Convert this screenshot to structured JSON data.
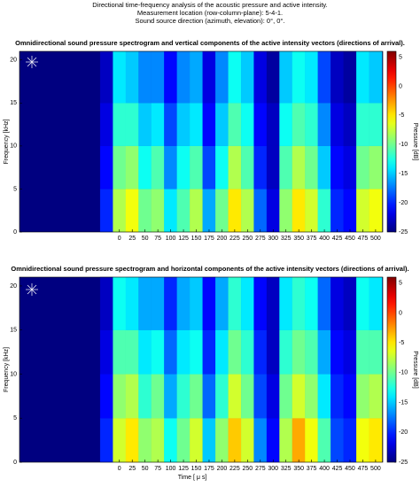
{
  "header": {
    "lines": [
      "Directional time-frequency analysis of the acoustic pressure and active intensity.",
      "Measurement location (row-column-plane): 5-4-1.",
      "Sound source direction (azimuth, elevation): 0°, 0°."
    ]
  },
  "chart_data": [
    {
      "type": "heatmap",
      "title": "Omnidirectional sound pressure spectrogram and vertical components of the active intensity vectors (directions of arrival).",
      "y_label": "Frequency [kHz]",
      "colorbar_label": "Pressure [dB]",
      "colormap": "jet",
      "xlim": [
        -195,
        514
      ],
      "ylim": [
        0,
        21
      ],
      "clim": [
        -25,
        6
      ],
      "xticks": [
        0,
        25,
        50,
        75,
        100,
        125,
        150,
        175,
        200,
        225,
        250,
        275,
        300,
        325,
        350,
        375,
        400,
        425,
        450,
        475,
        500
      ],
      "yticks": [
        0,
        5,
        10,
        15,
        20
      ],
      "cticks": [
        5,
        0,
        -5,
        -10,
        -15,
        -20,
        -25
      ],
      "x": [
        -25,
        0,
        25,
        50,
        75,
        100,
        125,
        150,
        175,
        200,
        225,
        250,
        275,
        300,
        325,
        350,
        375,
        400,
        425,
        450,
        475,
        500
      ],
      "y_bins": [
        0,
        5,
        10,
        15,
        21
      ],
      "z": [
        [
          -20,
          -8,
          -6,
          -10,
          -9,
          -14,
          -11,
          -8,
          -16,
          -10,
          -5,
          -8,
          -18,
          -22,
          -9,
          -5,
          -7,
          -12,
          -20,
          -21,
          -7,
          -6
        ],
        [
          -21,
          -10,
          -9,
          -13,
          -11,
          -17,
          -13,
          -11,
          -19,
          -13,
          -8,
          -11,
          -20,
          -23,
          -11,
          -8,
          -10,
          -15,
          -21,
          -22,
          -10,
          -9
        ],
        [
          -22,
          -12,
          -12,
          -15,
          -14,
          -19,
          -15,
          -14,
          -21,
          -15,
          -11,
          -13,
          -21,
          -23,
          -13,
          -11,
          -12,
          -17,
          -22,
          -23,
          -12,
          -12
        ],
        [
          -23,
          -14,
          -15,
          -17,
          -17,
          -21,
          -17,
          -16,
          -22,
          -17,
          -13,
          -15,
          -22,
          -24,
          -15,
          -13,
          -14,
          -19,
          -23,
          -24,
          -14,
          -15
        ]
      ]
    },
    {
      "type": "heatmap",
      "title": "Omnidirectional sound pressure spectrogram and horizontal components of the active intensity vectors (directions of arrival).",
      "x_label": "Time [ μ s]",
      "y_label": "Frequency [kHz]",
      "colorbar_label": "Pressure [dB]",
      "colormap": "jet",
      "xlim": [
        -195,
        514
      ],
      "ylim": [
        0,
        21
      ],
      "clim": [
        -25,
        6
      ],
      "xticks": [
        0,
        25,
        50,
        75,
        100,
        125,
        150,
        175,
        200,
        225,
        250,
        275,
        300,
        325,
        350,
        375,
        400,
        425,
        450,
        475,
        500
      ],
      "yticks": [
        0,
        5,
        10,
        15,
        20
      ],
      "cticks": [
        5,
        0,
        -5,
        -10,
        -15,
        -20,
        -25
      ],
      "x": [
        -25,
        0,
        25,
        50,
        75,
        100,
        125,
        150,
        175,
        200,
        225,
        250,
        275,
        300,
        325,
        350,
        375,
        400,
        425,
        450,
        475,
        500
      ],
      "y_bins": [
        0,
        5,
        10,
        15,
        21
      ],
      "z": [
        [
          -20,
          -7,
          -5,
          -9,
          -8,
          -13,
          -10,
          -7,
          -15,
          -9,
          -4,
          -7,
          -17,
          -21,
          -8,
          -3,
          -6,
          -11,
          -19,
          -20,
          -6,
          -5
        ],
        [
          -21,
          -9,
          -8,
          -12,
          -10,
          -16,
          -12,
          -10,
          -18,
          -12,
          -7,
          -10,
          -19,
          -22,
          -10,
          -7,
          -9,
          -14,
          -20,
          -21,
          -9,
          -8
        ],
        [
          -22,
          -11,
          -11,
          -14,
          -13,
          -18,
          -14,
          -13,
          -20,
          -14,
          -10,
          -12,
          -20,
          -23,
          -12,
          -10,
          -11,
          -16,
          -21,
          -22,
          -11,
          -11
        ],
        [
          -23,
          -13,
          -14,
          -16,
          -16,
          -20,
          -16,
          -15,
          -21,
          -16,
          -12,
          -14,
          -21,
          -23,
          -14,
          -12,
          -13,
          -18,
          -22,
          -23,
          -13,
          -14
        ]
      ]
    }
  ]
}
